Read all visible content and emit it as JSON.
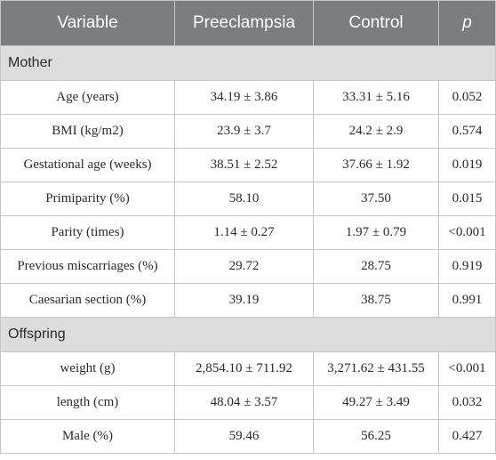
{
  "headers": [
    "Variable",
    "Preeclampsia",
    "Control",
    "p"
  ],
  "sections": [
    {
      "title": "Mother",
      "rows": [
        [
          "Age (years)",
          "34.19 ± 3.86",
          "33.31 ± 5.16",
          "0.052"
        ],
        [
          "BMI (kg/m2)",
          "23.9 ± 3.7",
          "24.2 ± 2.9",
          "0.574"
        ],
        [
          "Gestational age (weeks)",
          "38.51 ± 2.52",
          "37.66 ± 1.92",
          "0.019"
        ],
        [
          "Primiparity (%)",
          "58.10",
          "37.50",
          "0.015"
        ],
        [
          "Parity (times)",
          "1.14 ± 0.27",
          "1.97 ± 0.79",
          "<0.001"
        ],
        [
          "Previous miscarriages (%)",
          "29.72",
          "28.75",
          "0.919"
        ],
        [
          "Caesarian section (%)",
          "39.19",
          "38.75",
          "0.991"
        ]
      ]
    },
    {
      "title": "Offspring",
      "rows": [
        [
          "weight (g)",
          "2,854.10 ± 711.92",
          "3,271.62 ± 431.55",
          "<0.001"
        ],
        [
          "length (cm)",
          "48.04 ± 3.57",
          "49.27 ± 3.49",
          "0.032"
        ],
        [
          "Male (%)",
          "59.46",
          "56.25",
          "0.427"
        ]
      ]
    }
  ]
}
